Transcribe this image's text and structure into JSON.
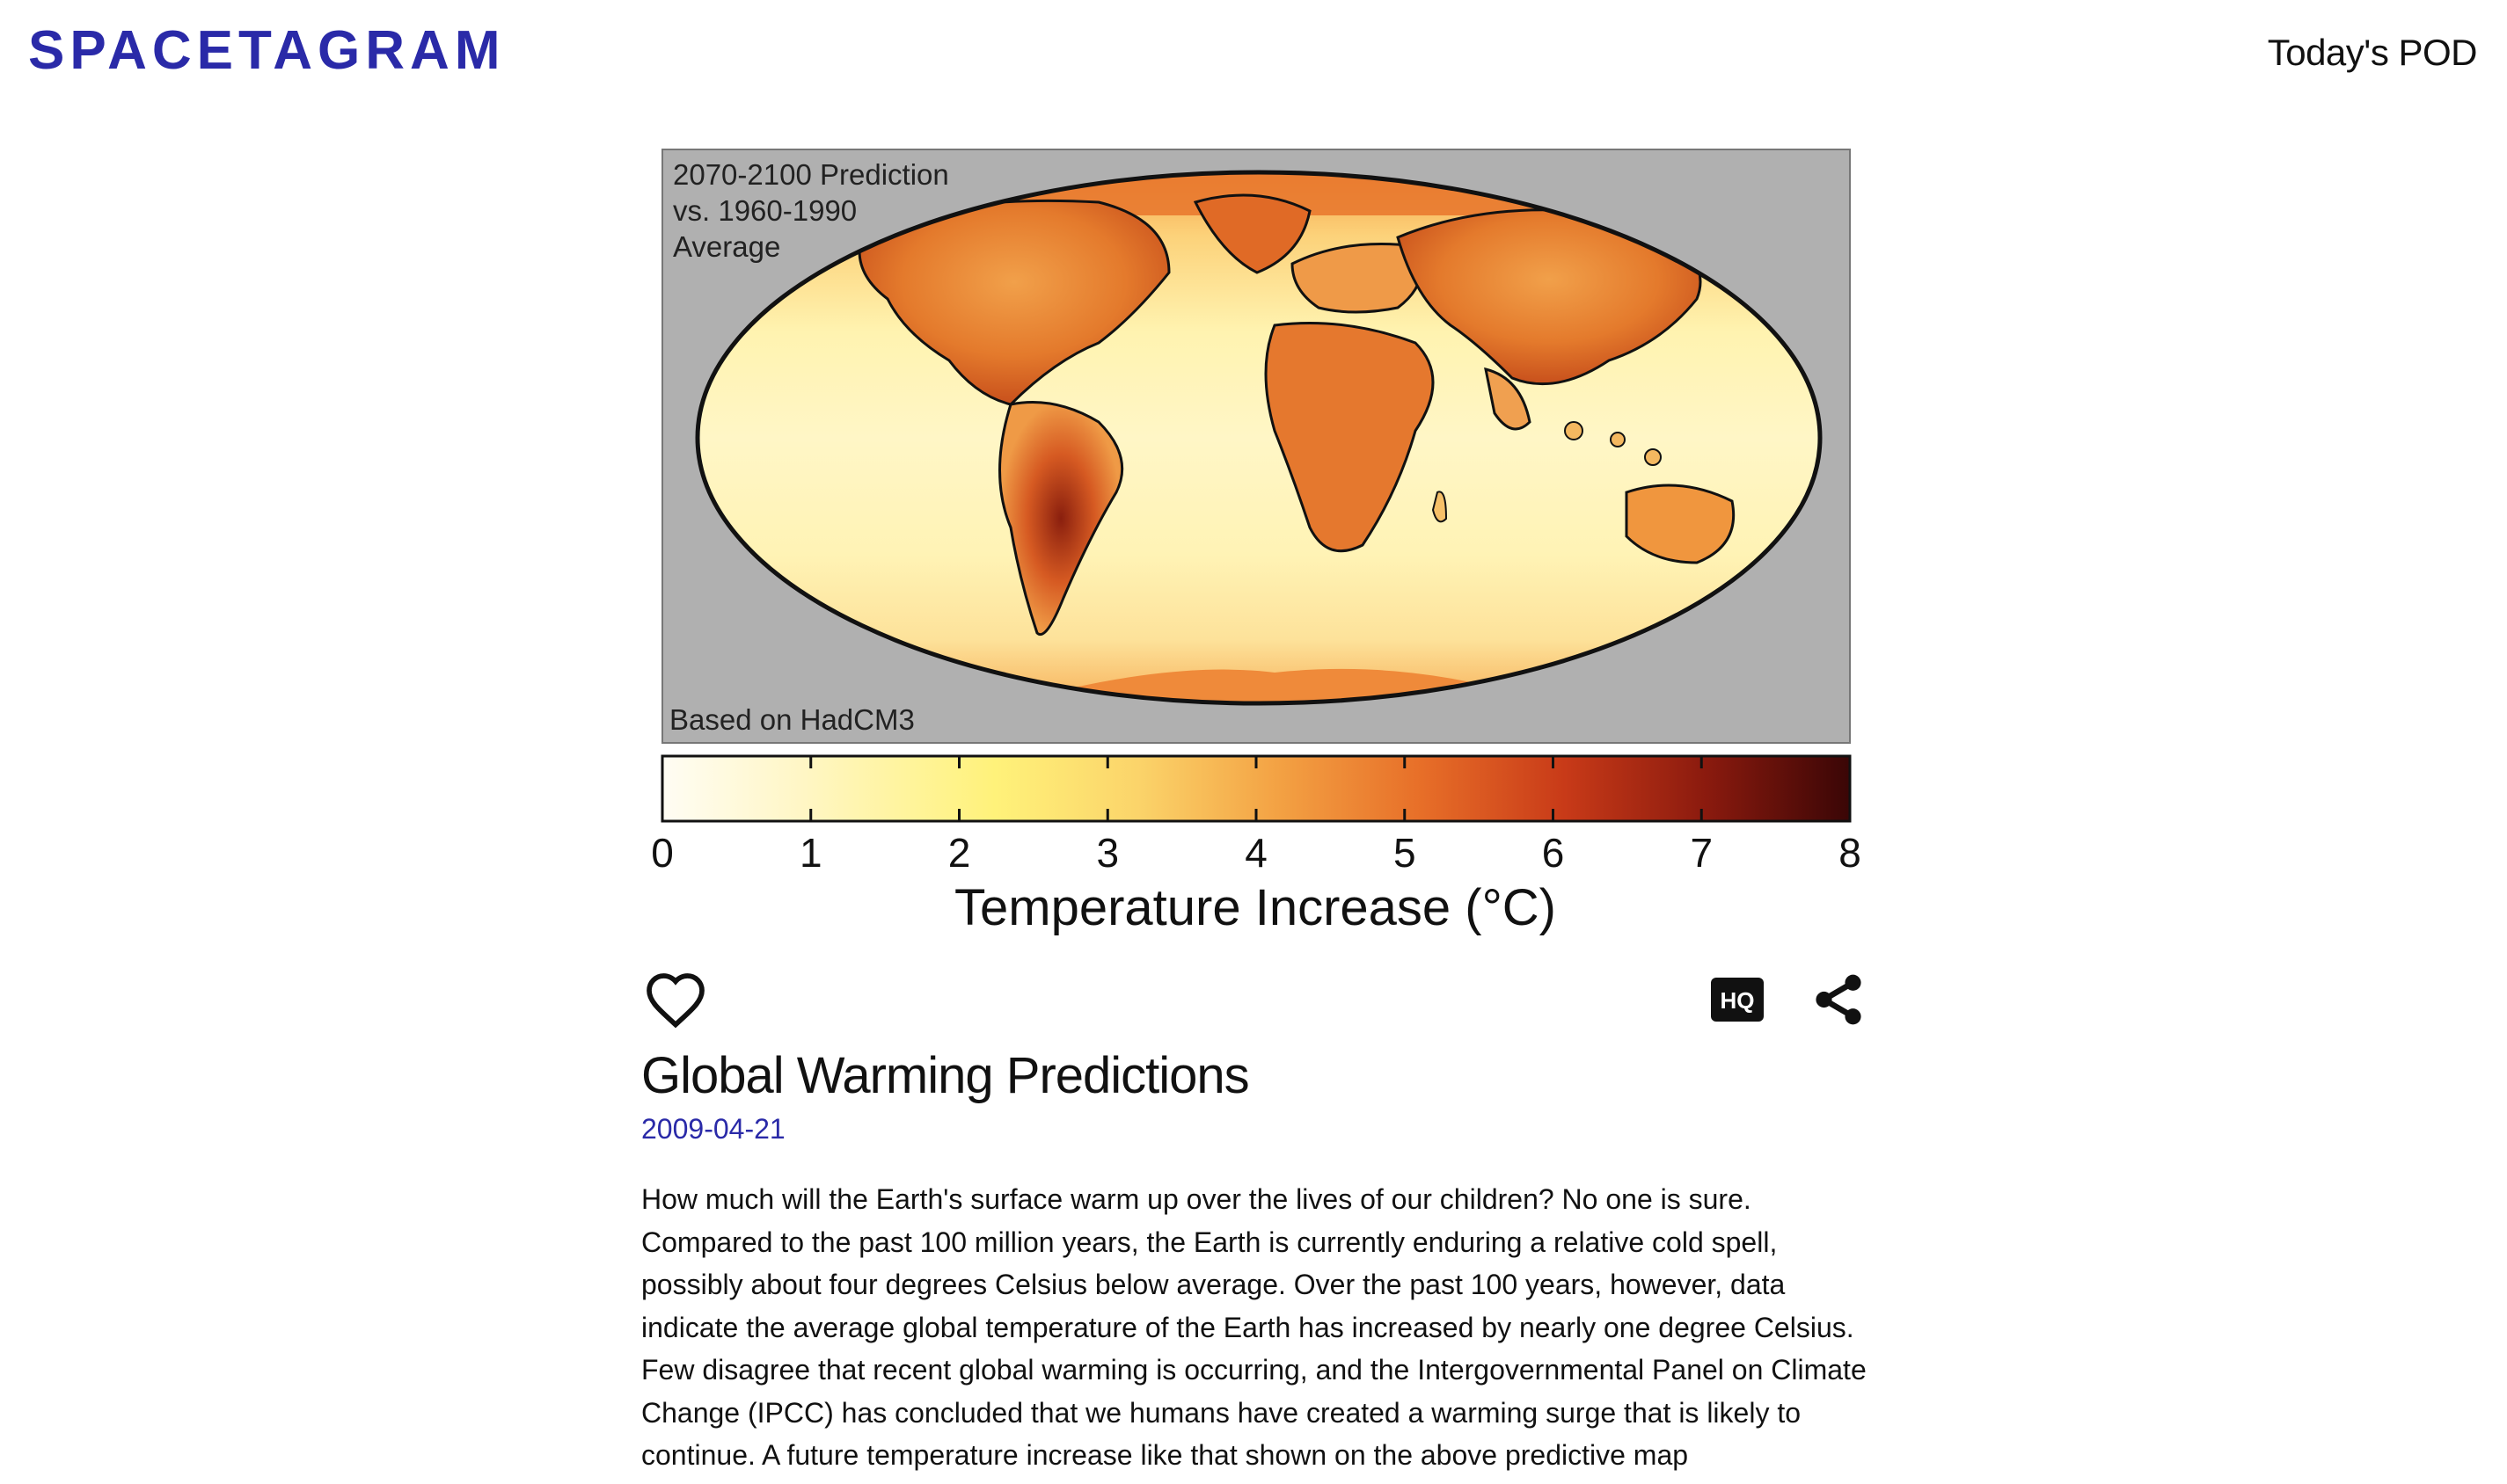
{
  "header": {
    "brand": "SPACETAGRAM",
    "nav_link": "Today's POD"
  },
  "post": {
    "title": "Global Warming Predictions",
    "date": "2009-04-21",
    "description": "How much will the Earth's surface warm up over the lives of our children? No one is sure. Compared to the past 100 million years, the Earth is currently enduring a relative cold spell, possibly about four degrees Celsius below average. Over the past 100 years, however, data indicate the average global temperature of the Earth has increased by nearly one degree Celsius. Few disagree that recent global warming is occurring, and the Intergovernmental Panel on Climate Change (IPCC) has concluded that we humans have created a warming surge that is likely to continue. A future temperature increase like that shown on the above predictive map",
    "image": {
      "caption_lines": [
        "2070-2100 Prediction",
        "vs. 1960-1990",
        "Average"
      ],
      "credit": "Based on HadCM3",
      "colorbar_ticks": [
        "0",
        "1",
        "2",
        "3",
        "4",
        "5",
        "6",
        "7",
        "8"
      ],
      "colorbar_label": "Temperature Increase (°C)",
      "colors": {
        "ocean_bg": "#b0b0b0",
        "low": "#fffdf0",
        "mid": "#ffe680",
        "high": "#e85a1a",
        "max": "#3a0606"
      }
    }
  },
  "actions": {
    "like_icon": "heart-icon",
    "hq_icon": "hq-icon",
    "hq_label": "HQ",
    "share_icon": "share-icon"
  },
  "colors": {
    "brand": "#2a2aa8",
    "date": "#2a2aa8",
    "text": "#111111"
  }
}
